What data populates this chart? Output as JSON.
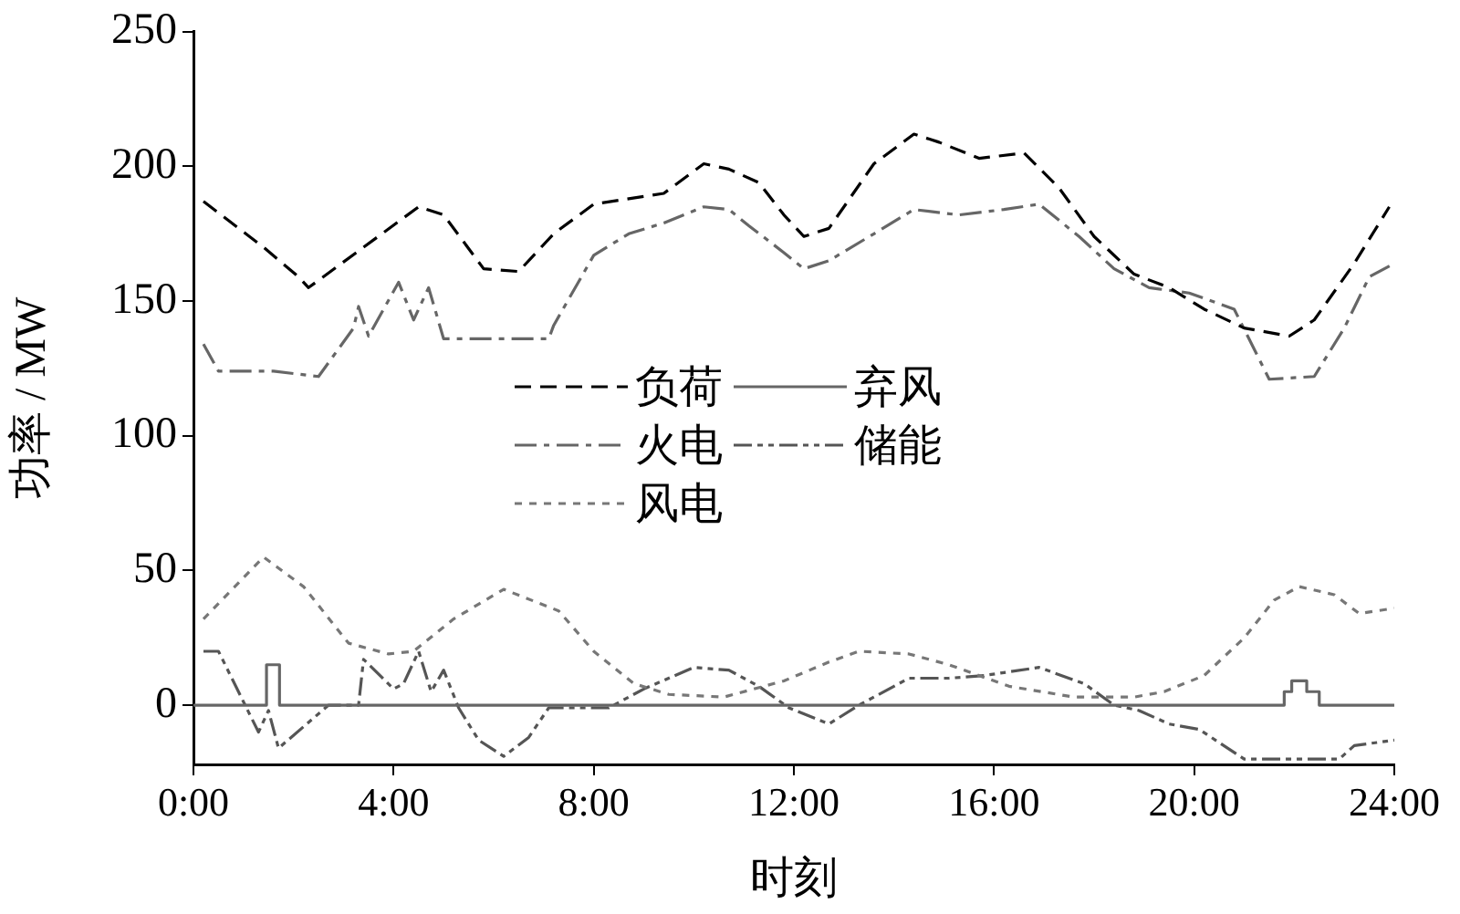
{
  "chart_data": {
    "type": "line",
    "xlabel": "时刻",
    "ylabel": "功率 / MW",
    "xlim": [
      0,
      24
    ],
    "xticks": [
      {
        "value": 0,
        "label": "0:00"
      },
      {
        "value": 4,
        "label": "4:00"
      },
      {
        "value": 8,
        "label": "8:00"
      },
      {
        "value": 12,
        "label": "12:00"
      },
      {
        "value": 16,
        "label": "16:00"
      },
      {
        "value": 20,
        "label": "20:00"
      },
      {
        "value": 24,
        "label": "24:00"
      }
    ],
    "ylim": [
      -22,
      250
    ],
    "yticks": [
      0,
      50,
      100,
      150,
      200,
      250
    ],
    "grid": false,
    "legend": "center",
    "series": [
      {
        "name": "负荷",
        "color": "#000000",
        "line_style": "dashed",
        "x": [
          0.2,
          1.4,
          2.1,
          2.3,
          3.4,
          4.5,
          5.0,
          5.8,
          6.5,
          7.2,
          8.0,
          8.7,
          9.4,
          10.2,
          10.7,
          11.3,
          11.8,
          12.2,
          12.7,
          13.6,
          14.4,
          14.9,
          15.7,
          16.6,
          17.3,
          18.0,
          18.8,
          19.5,
          20.2,
          21.0,
          21.9,
          22.4,
          23.2,
          23.9
        ],
        "values": [
          187,
          170,
          159,
          155,
          170,
          185,
          182,
          162,
          161,
          175,
          186,
          188,
          190,
          201,
          199,
          194,
          182,
          174,
          177,
          201,
          212,
          209,
          203,
          205,
          192,
          174,
          160,
          155,
          147,
          140,
          137,
          143,
          164,
          185
        ]
      },
      {
        "name": "火电",
        "color": "#666666",
        "line_style": "dashdot",
        "x": [
          0.2,
          0.5,
          1.6,
          2.5,
          3.2,
          3.3,
          3.5,
          4.1,
          4.4,
          4.7,
          5.0,
          7.1,
          7.2,
          8.0,
          8.7,
          9.4,
          10.2,
          10.7,
          11.1,
          11.8,
          12.2,
          12.7,
          13.6,
          14.4,
          15.3,
          16.2,
          16.9,
          17.7,
          18.4,
          19.1,
          19.9,
          20.8,
          21.5,
          22.4,
          23.0,
          23.5,
          24
        ],
        "values": [
          134,
          124,
          124,
          122,
          140,
          148,
          137,
          157,
          143,
          155,
          136,
          136,
          141,
          167,
          175,
          179,
          185,
          184,
          178,
          168,
          162,
          165,
          175,
          184,
          182,
          184,
          186,
          174,
          162,
          155,
          153,
          147,
          121,
          122,
          140,
          159,
          164
        ]
      },
      {
        "name": "风电",
        "color": "#777777",
        "line_style": "dotted",
        "x": [
          0.2,
          1.4,
          2.2,
          3.1,
          3.9,
          4.4,
          5.2,
          6.2,
          7.3,
          8.0,
          8.8,
          9.5,
          10.6,
          11.2,
          11.8,
          12.7,
          13.3,
          14.3,
          15.1,
          16.3,
          17.6,
          18.8,
          19.4,
          20.2,
          21.0,
          21.6,
          22.1,
          22.8,
          23.3,
          24
        ],
        "values": [
          32,
          55,
          44,
          23,
          19,
          20,
          32,
          43,
          35,
          20,
          8,
          4,
          3,
          6,
          9,
          16,
          20,
          19,
          15,
          7,
          3,
          3,
          5,
          11,
          25,
          39,
          44,
          41,
          34,
          36
        ]
      },
      {
        "name": "弃风",
        "color": "#666666",
        "type": "step",
        "line_style": "solid",
        "x": [
          0,
          1.46,
          1.72,
          21.8,
          21.95,
          22.25,
          22.5,
          24
        ],
        "values": [
          0,
          15,
          0,
          5,
          9,
          5,
          0,
          0
        ]
      },
      {
        "name": "储能",
        "color": "#555555",
        "line_style": "dashdotdot",
        "x": [
          0.2,
          0.5,
          1.3,
          1.5,
          1.7,
          2.7,
          3.3,
          3.4,
          4.0,
          4.2,
          4.5,
          4.75,
          5.0,
          5.3,
          5.7,
          6.2,
          6.7,
          7.1,
          8.3,
          9.0,
          10.0,
          10.7,
          11.3,
          11.9,
          12.7,
          13.3,
          14.3,
          15.1,
          15.8,
          16.9,
          17.8,
          18.4,
          18.9,
          19.5,
          20.1,
          21.0,
          22.9,
          23.2,
          24
        ],
        "values": [
          20,
          20,
          -10,
          -2,
          -16,
          0,
          0,
          17,
          6,
          8,
          20,
          5,
          13,
          -1,
          -13,
          -19,
          -12,
          -1,
          -1,
          6,
          14,
          13,
          7,
          -1,
          -7,
          0,
          10,
          10,
          11,
          14,
          8,
          0,
          -2,
          -7,
          -9,
          -20,
          -20,
          -15,
          -13
        ]
      }
    ]
  }
}
